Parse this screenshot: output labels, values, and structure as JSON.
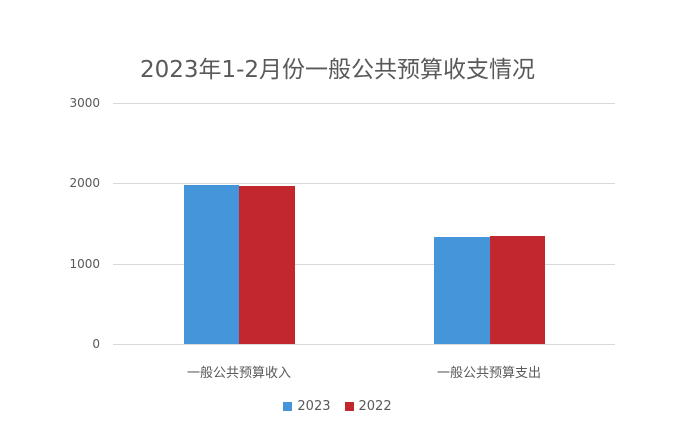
{
  "chart_data": {
    "type": "bar",
    "title": "2023年1-2月份一般公共预算收支情况",
    "categories": [
      "一般公共预算收入",
      "一般公共预算支出"
    ],
    "series": [
      {
        "name": "2023",
        "color": "#4495d9",
        "values": [
          1980,
          1333
        ]
      },
      {
        "name": "2022",
        "color": "#c1272d",
        "values": [
          1968,
          1345
        ]
      }
    ],
    "xlabel": "",
    "ylabel": "",
    "ylim": [
      0,
      3000
    ],
    "yticks": [
      "0",
      "1000",
      "2000",
      "3000"
    ],
    "grid": true,
    "legend_position": "bottom"
  }
}
